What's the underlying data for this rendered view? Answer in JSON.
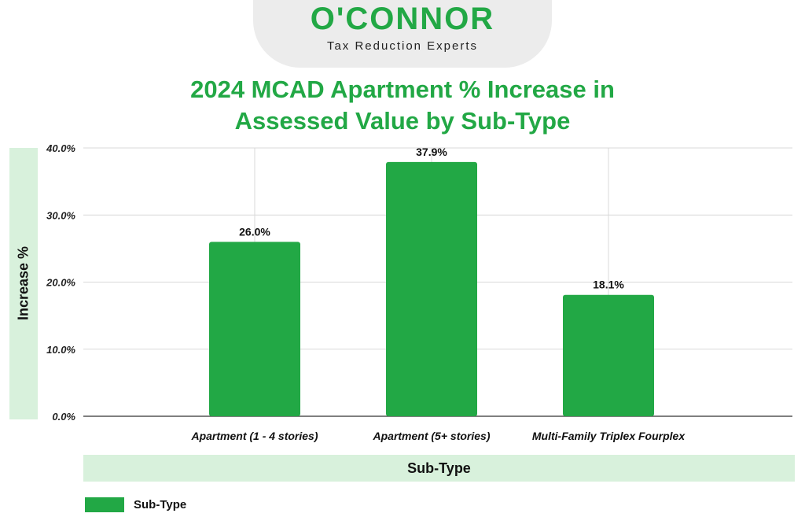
{
  "logo": {
    "wordmark": "O'CONNOR",
    "tagline": "Tax Reduction Experts"
  },
  "colors": {
    "bar": "#22a845",
    "axis_band": "#d8f1dc",
    "title": "#22a845"
  },
  "chart_data": {
    "type": "bar",
    "title_lines": [
      "2024 MCAD Apartment % Increase in",
      "Assessed Value by Sub-Type"
    ],
    "xlabel": "Sub-Type",
    "ylabel": "Increase %",
    "categories": [
      "Apartment (1 - 4 stories)",
      "Apartment (5+ stories)",
      "Multi-Family Triplex Fourplex"
    ],
    "series": [
      {
        "name": "Sub-Type",
        "values": [
          26.0,
          37.9,
          18.1
        ]
      }
    ],
    "data_labels": [
      "26.0%",
      "37.9%",
      "18.1%"
    ],
    "ylim": [
      0,
      40
    ],
    "yticks": [
      0,
      10,
      20,
      30,
      40
    ],
    "ytick_labels": [
      "0.0%",
      "10.0%",
      "20.0%",
      "30.0%",
      "40.0%"
    ],
    "grid": true,
    "legend": {
      "position": "bottom-left",
      "label": "Sub-Type"
    }
  }
}
